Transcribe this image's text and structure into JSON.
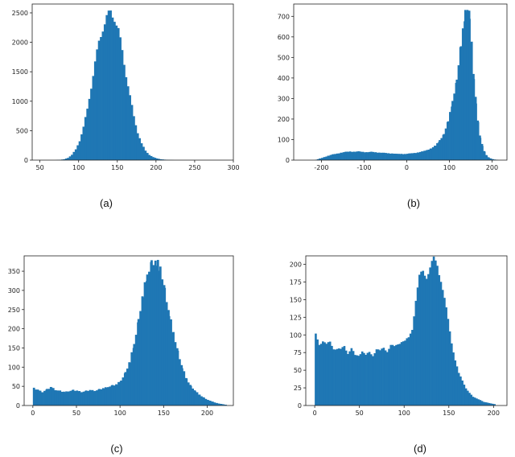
{
  "colors": {
    "bar": "#1f77b4",
    "axis": "#222222"
  },
  "chart_data": [
    {
      "type": "bar",
      "caption": "(a)",
      "xlim": [
        40,
        300
      ],
      "ylim": [
        0,
        2650
      ],
      "xticks": [
        50,
        100,
        150,
        200,
        250,
        300
      ],
      "yticks": [
        0,
        500,
        1000,
        1500,
        2000,
        2500
      ],
      "bin_width": 2.5,
      "bins": [
        [
          70,
          2
        ],
        [
          75,
          5
        ],
        [
          80,
          15
        ],
        [
          85,
          40
        ],
        [
          90,
          90
        ],
        [
          95,
          180
        ],
        [
          100,
          330
        ],
        [
          105,
          560
        ],
        [
          110,
          860
        ],
        [
          115,
          1250
        ],
        [
          120,
          1650
        ],
        [
          125,
          2000
        ],
        [
          130,
          2250
        ],
        [
          135,
          2420
        ],
        [
          140,
          2510
        ],
        [
          145,
          2420
        ],
        [
          150,
          2200
        ],
        [
          155,
          1850
        ],
        [
          160,
          1450
        ],
        [
          165,
          1080
        ],
        [
          170,
          740
        ],
        [
          175,
          470
        ],
        [
          180,
          280
        ],
        [
          185,
          160
        ],
        [
          190,
          90
        ],
        [
          195,
          50
        ],
        [
          200,
          28
        ],
        [
          205,
          15
        ],
        [
          210,
          8
        ],
        [
          215,
          4
        ],
        [
          220,
          2
        ]
      ],
      "title": "",
      "xlabel": "",
      "ylabel": ""
    },
    {
      "type": "bar",
      "caption": "(b)",
      "xlim": [
        -265,
        235
      ],
      "ylim": [
        0,
        760
      ],
      "xticks": [
        -200,
        -100,
        0,
        100,
        200
      ],
      "yticks": [
        0,
        100,
        200,
        300,
        400,
        500,
        600,
        700
      ],
      "bin_width": 4.2,
      "bins": [
        [
          -215,
          2
        ],
        [
          -205,
          8
        ],
        [
          -195,
          15
        ],
        [
          -185,
          22
        ],
        [
          -175,
          28
        ],
        [
          -165,
          32
        ],
        [
          -155,
          36
        ],
        [
          -145,
          40
        ],
        [
          -135,
          42
        ],
        [
          -125,
          40
        ],
        [
          -115,
          42
        ],
        [
          -105,
          40
        ],
        [
          -95,
          38
        ],
        [
          -85,
          40
        ],
        [
          -75,
          38
        ],
        [
          -65,
          36
        ],
        [
          -55,
          35
        ],
        [
          -45,
          33
        ],
        [
          -35,
          32
        ],
        [
          -25,
          30
        ],
        [
          -15,
          30
        ],
        [
          -5,
          30
        ],
        [
          5,
          32
        ],
        [
          15,
          34
        ],
        [
          25,
          38
        ],
        [
          35,
          42
        ],
        [
          45,
          48
        ],
        [
          55,
          58
        ],
        [
          65,
          70
        ],
        [
          75,
          95
        ],
        [
          85,
          130
        ],
        [
          95,
          190
        ],
        [
          105,
          280
        ],
        [
          115,
          400
        ],
        [
          125,
          560
        ],
        [
          135,
          710
        ],
        [
          140,
          740
        ],
        [
          145,
          700
        ],
        [
          150,
          560
        ],
        [
          155,
          400
        ],
        [
          160,
          280
        ],
        [
          165,
          180
        ],
        [
          170,
          110
        ],
        [
          175,
          70
        ],
        [
          180,
          40
        ],
        [
          185,
          22
        ],
        [
          190,
          12
        ],
        [
          200,
          4
        ],
        [
          210,
          1
        ]
      ],
      "title": "",
      "xlabel": "",
      "ylabel": ""
    },
    {
      "type": "bar",
      "caption": "(c)",
      "xlim": [
        -10,
        230
      ],
      "ylim": [
        0,
        390
      ],
      "xticks": [
        0,
        50,
        100,
        150,
        200
      ],
      "yticks": [
        0,
        50,
        100,
        150,
        200,
        250,
        300,
        350
      ],
      "bin_width": 2.2,
      "bins": [
        [
          0,
          45
        ],
        [
          5,
          40
        ],
        [
          10,
          35
        ],
        [
          15,
          42
        ],
        [
          20,
          48
        ],
        [
          25,
          40
        ],
        [
          30,
          38
        ],
        [
          35,
          35
        ],
        [
          40,
          37
        ],
        [
          45,
          40
        ],
        [
          50,
          38
        ],
        [
          55,
          35
        ],
        [
          60,
          38
        ],
        [
          65,
          40
        ],
        [
          70,
          38
        ],
        [
          75,
          42
        ],
        [
          80,
          45
        ],
        [
          85,
          48
        ],
        [
          90,
          52
        ],
        [
          95,
          55
        ],
        [
          100,
          65
        ],
        [
          105,
          85
        ],
        [
          110,
          115
        ],
        [
          115,
          160
        ],
        [
          120,
          220
        ],
        [
          125,
          290
        ],
        [
          130,
          340
        ],
        [
          135,
          370
        ],
        [
          140,
          375
        ],
        [
          145,
          360
        ],
        [
          150,
          300
        ],
        [
          155,
          240
        ],
        [
          160,
          190
        ],
        [
          165,
          140
        ],
        [
          170,
          100
        ],
        [
          175,
          70
        ],
        [
          180,
          50
        ],
        [
          185,
          38
        ],
        [
          190,
          28
        ],
        [
          195,
          20
        ],
        [
          200,
          14
        ],
        [
          205,
          10
        ],
        [
          210,
          6
        ],
        [
          215,
          4
        ],
        [
          220,
          2
        ]
      ],
      "title": "",
      "xlabel": "",
      "ylabel": ""
    },
    {
      "type": "bar",
      "caption": "(d)",
      "xlim": [
        -10,
        215
      ],
      "ylim": [
        0,
        212
      ],
      "xticks": [
        0,
        50,
        100,
        150,
        200
      ],
      "yticks": [
        0,
        25,
        50,
        75,
        100,
        125,
        150,
        175,
        200
      ],
      "bin_width": 2.0,
      "bins": [
        [
          0,
          100
        ],
        [
          4,
          88
        ],
        [
          8,
          92
        ],
        [
          12,
          85
        ],
        [
          16,
          90
        ],
        [
          20,
          82
        ],
        [
          24,
          80
        ],
        [
          28,
          78
        ],
        [
          32,
          85
        ],
        [
          36,
          75
        ],
        [
          40,
          80
        ],
        [
          44,
          70
        ],
        [
          48,
          72
        ],
        [
          52,
          78
        ],
        [
          56,
          70
        ],
        [
          60,
          75
        ],
        [
          64,
          72
        ],
        [
          68,
          80
        ],
        [
          72,
          76
        ],
        [
          76,
          82
        ],
        [
          80,
          78
        ],
        [
          84,
          85
        ],
        [
          88,
          82
        ],
        [
          92,
          88
        ],
        [
          96,
          92
        ],
        [
          100,
          90
        ],
        [
          104,
          95
        ],
        [
          108,
          110
        ],
        [
          112,
          150
        ],
        [
          116,
          180
        ],
        [
          120,
          190
        ],
        [
          124,
          185
        ],
        [
          128,
          195
        ],
        [
          132,
          205
        ],
        [
          136,
          200
        ],
        [
          140,
          180
        ],
        [
          144,
          150
        ],
        [
          148,
          120
        ],
        [
          152,
          90
        ],
        [
          156,
          65
        ],
        [
          160,
          45
        ],
        [
          164,
          35
        ],
        [
          168,
          25
        ],
        [
          172,
          18
        ],
        [
          176,
          12
        ],
        [
          180,
          10
        ],
        [
          184,
          8
        ],
        [
          188,
          5
        ],
        [
          192,
          4
        ],
        [
          196,
          3
        ],
        [
          200,
          2
        ]
      ],
      "title": "",
      "xlabel": "",
      "ylabel": ""
    }
  ]
}
